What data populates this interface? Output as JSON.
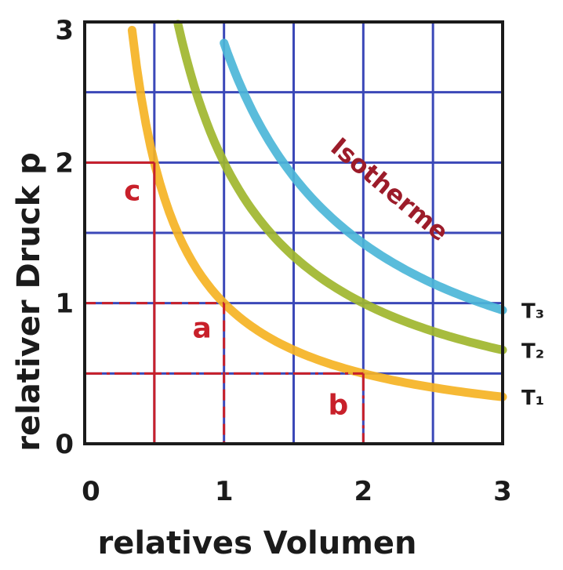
{
  "chart_data": {
    "type": "line",
    "title": "",
    "xlabel": "relatives Volumen",
    "ylabel": "relativer Druck p",
    "xlim": [
      0,
      3
    ],
    "ylim": [
      0,
      3
    ],
    "xticks": [
      {
        "value": 0,
        "label": "0"
      },
      {
        "value": 1,
        "label": "1"
      },
      {
        "value": 2,
        "label": "2"
      },
      {
        "value": 3,
        "label": "3"
      }
    ],
    "yticks": [
      {
        "value": 0,
        "label": "0"
      },
      {
        "value": 1,
        "label": "1"
      },
      {
        "value": 2,
        "label": "2"
      },
      {
        "value": 3,
        "label": "3"
      }
    ],
    "grid": true,
    "grid_step": 0.5,
    "curve_annotation": "Isotherme",
    "series": [
      {
        "name": "T₁",
        "constant_pV": 1.0,
        "x_range": [
          0.34,
          3.0
        ],
        "color": "#f5b324"
      },
      {
        "name": "T₂",
        "constant_pV": 2.0,
        "x_range": [
          0.67,
          3.0
        ],
        "color": "#9fb62e"
      },
      {
        "name": "T₃",
        "constant_pV": 2.85,
        "x_range": [
          1.0,
          3.0
        ],
        "color": "#4cb6d8"
      }
    ],
    "points": [
      {
        "label": "c",
        "x": 0.5,
        "y": 2.0,
        "line_style": "solid"
      },
      {
        "label": "a",
        "x": 1.0,
        "y": 1.0,
        "line_style": "dashed"
      },
      {
        "label": "b",
        "x": 2.0,
        "y": 0.5,
        "line_style": "dashdot"
      }
    ],
    "colors": {
      "grid": "#3b48b8",
      "frame": "#1b1b1b",
      "marker_lines": "#c8202a"
    }
  }
}
